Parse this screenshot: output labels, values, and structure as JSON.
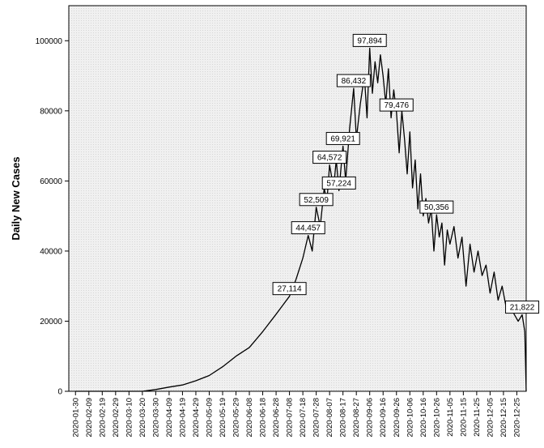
{
  "chart_data": {
    "type": "line",
    "ylabel": "Daily New Cases",
    "xlabel": "",
    "ylim": [
      0,
      110000
    ],
    "yticks": [
      0,
      20000,
      40000,
      60000,
      80000,
      100000
    ],
    "grid": false,
    "x_ticks": [
      "2020-01-30",
      "2020-02-09",
      "2020-02-19",
      "2020-02-29",
      "2020-03-10",
      "2020-03-20",
      "2020-03-30",
      "2020-04-09",
      "2020-04-19",
      "2020-04-29",
      "2020-05-09",
      "2020-05-19",
      "2020-05-29",
      "2020-06-08",
      "2020-06-18",
      "2020-06-28",
      "2020-07-08",
      "2020-07-18",
      "2020-07-28",
      "2020-08-07",
      "2020-08-17",
      "2020-08-27",
      "2020-09-06",
      "2020-09-16",
      "2020-09-26",
      "2020-10-06",
      "2020-10-16",
      "2020-10-26",
      "2020-11-05",
      "2020-11-15",
      "2020-11-25",
      "2020-12-05",
      "2020-12-15",
      "2020-12-25"
    ],
    "series": [
      {
        "name": "",
        "color": "#000000",
        "x": [
          "2020-01-30",
          "2020-02-29",
          "2020-03-20",
          "2020-03-30",
          "2020-04-09",
          "2020-04-19",
          "2020-04-29",
          "2020-05-09",
          "2020-05-19",
          "2020-05-29",
          "2020-06-08",
          "2020-06-18",
          "2020-06-28",
          "2020-07-08",
          "2020-07-13",
          "2020-07-18",
          "2020-07-22",
          "2020-07-25",
          "2020-07-28",
          "2020-07-31",
          "2020-08-03",
          "2020-08-05",
          "2020-08-07",
          "2020-08-10",
          "2020-08-12",
          "2020-08-14",
          "2020-08-17",
          "2020-08-19",
          "2020-08-22",
          "2020-08-25",
          "2020-08-27",
          "2020-08-30",
          "2020-09-02",
          "2020-09-04",
          "2020-09-06",
          "2020-09-08",
          "2020-09-10",
          "2020-09-12",
          "2020-09-14",
          "2020-09-16",
          "2020-09-18",
          "2020-09-20",
          "2020-09-22",
          "2020-09-24",
          "2020-09-26",
          "2020-09-28",
          "2020-09-30",
          "2020-10-02",
          "2020-10-04",
          "2020-10-06",
          "2020-10-08",
          "2020-10-10",
          "2020-10-12",
          "2020-10-14",
          "2020-10-16",
          "2020-10-18",
          "2020-10-20",
          "2020-10-22",
          "2020-10-24",
          "2020-10-26",
          "2020-10-28",
          "2020-10-30",
          "2020-11-01",
          "2020-11-03",
          "2020-11-05",
          "2020-11-08",
          "2020-11-11",
          "2020-11-14",
          "2020-11-17",
          "2020-11-20",
          "2020-11-23",
          "2020-11-26",
          "2020-11-29",
          "2020-12-02",
          "2020-12-05",
          "2020-12-08",
          "2020-12-11",
          "2020-12-14",
          "2020-12-17",
          "2020-12-20",
          "2020-12-23",
          "2020-12-26",
          "2020-12-29",
          "2020-12-31",
          "2021-01-01"
        ],
        "values": [
          0,
          0,
          0,
          500,
          1200,
          1800,
          3000,
          4500,
          7000,
          10000,
          12500,
          17000,
          22000,
          27114,
          32000,
          38000,
          44457,
          40000,
          52509,
          47000,
          58000,
          54000,
          64572,
          58000,
          66000,
          57224,
          69921,
          60000,
          75000,
          86432,
          72000,
          82000,
          90000,
          78000,
          97894,
          85000,
          94000,
          88000,
          96000,
          90000,
          82000,
          92000,
          78000,
          86000,
          79476,
          68000,
          80000,
          72000,
          62000,
          74000,
          58000,
          66000,
          52000,
          62000,
          50000,
          55000,
          48000,
          52000,
          40000,
          50356,
          44000,
          48000,
          36000,
          46000,
          42000,
          47000,
          38000,
          44000,
          30000,
          42000,
          34000,
          40000,
          33000,
          36000,
          28000,
          34000,
          26000,
          30000,
          24000,
          25000,
          22000,
          20000,
          21822,
          17000,
          0
        ]
      }
    ],
    "data_labels": [
      {
        "x": "2020-07-08",
        "value": 27114,
        "text": "27,114"
      },
      {
        "x": "2020-07-22",
        "value": 44457,
        "text": "44,457"
      },
      {
        "x": "2020-07-28",
        "value": 52509,
        "text": "52,509"
      },
      {
        "x": "2020-08-07",
        "value": 64572,
        "text": "64,572"
      },
      {
        "x": "2020-08-14",
        "value": 57224,
        "text": "57,224"
      },
      {
        "x": "2020-08-17",
        "value": 69921,
        "text": "69,921"
      },
      {
        "x": "2020-08-25",
        "value": 86432,
        "text": "86,432"
      },
      {
        "x": "2020-09-06",
        "value": 97894,
        "text": "97,894"
      },
      {
        "x": "2020-09-26",
        "value": 79476,
        "text": "79,476"
      },
      {
        "x": "2020-10-26",
        "value": 50356,
        "text": "50,356"
      },
      {
        "x": "2020-12-29",
        "value": 21822,
        "text": "21,822"
      }
    ]
  }
}
